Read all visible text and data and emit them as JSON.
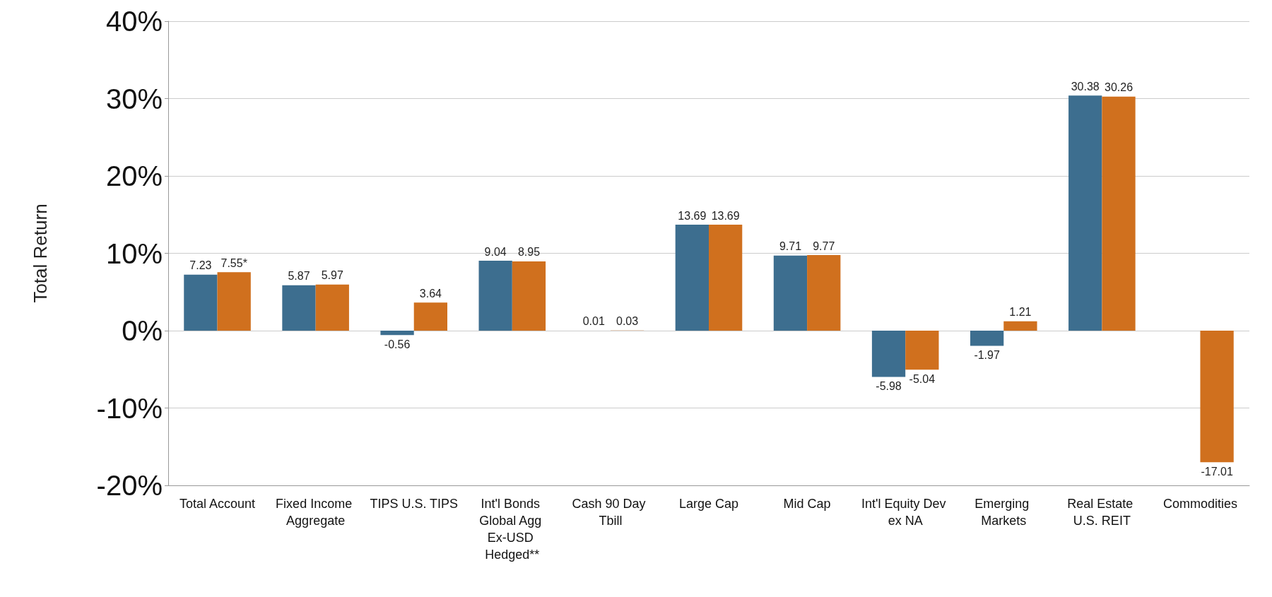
{
  "chart_data": {
    "type": "bar",
    "ylabel": "Total Return",
    "categories": [
      "Total Account",
      "Fixed Income Aggregate",
      "TIPS U.S. TIPS",
      "Int'l Bonds Global Agg Ex-USD Hedged**",
      "Cash 90 Day Tbill",
      "Large Cap",
      "Mid Cap",
      "Int'l Equity Dev ex NA",
      "Emerging Markets",
      "Real Estate U.S. REIT",
      "Commodities"
    ],
    "series": [
      {
        "color": "#3d6e8f",
        "values": [
          7.23,
          5.87,
          -0.56,
          9.04,
          0.01,
          13.69,
          9.71,
          -5.98,
          -1.97,
          30.38,
          null
        ],
        "value_labels": [
          "7.23",
          "5.87",
          "-0.56",
          "9.04",
          "0.01",
          "13.69",
          "9.71",
          "-5.98",
          "-1.97",
          "30.38",
          null
        ]
      },
      {
        "color": "#d0701e",
        "values": [
          7.55,
          5.97,
          3.64,
          8.95,
          0.03,
          13.69,
          9.77,
          -5.04,
          1.21,
          30.26,
          -17.01
        ],
        "value_labels": [
          "7.55*",
          "5.97",
          "3.64",
          "8.95",
          "0.03",
          "13.69",
          "9.77",
          "-5.04",
          "1.21",
          "30.26",
          "-17.01"
        ]
      }
    ],
    "ylim": [
      -20,
      40
    ],
    "yticks": [
      {
        "value": -20,
        "label": "-20%"
      },
      {
        "value": -10,
        "label": "-10%"
      },
      {
        "value": 0,
        "label": "0%"
      },
      {
        "value": 10,
        "label": "10%"
      },
      {
        "value": 20,
        "label": "20%"
      },
      {
        "value": 30,
        "label": "30%"
      },
      {
        "value": 40,
        "label": "40%"
      }
    ],
    "grid": "y"
  }
}
